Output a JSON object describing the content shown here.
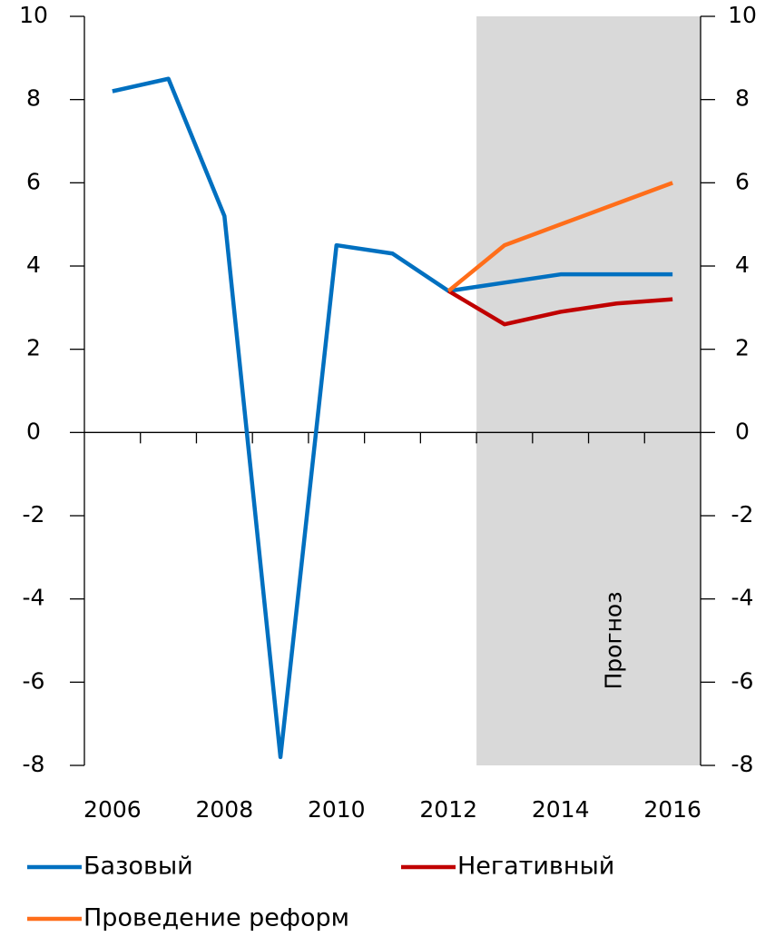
{
  "chart_data": {
    "type": "line",
    "categories": [
      "2006",
      null,
      "2008",
      null,
      "2010",
      null,
      "2012",
      null,
      "2014",
      null,
      "2016"
    ],
    "series": [
      {
        "name": "Базовый",
        "color": "#0070c0",
        "values": [
          8.2,
          8.5,
          5.2,
          -7.8,
          4.5,
          4.3,
          3.4,
          3.6,
          3.8,
          3.8,
          3.8
        ]
      },
      {
        "name": "Негативный",
        "color": "#c00000",
        "values": [
          null,
          null,
          null,
          null,
          null,
          null,
          3.4,
          2.6,
          2.9,
          3.1,
          3.2
        ]
      },
      {
        "name": "Проведение реформ",
        "color": "#ff6e1a",
        "values": [
          null,
          null,
          null,
          null,
          null,
          null,
          3.4,
          4.5,
          5.0,
          5.5,
          6.0
        ]
      }
    ],
    "ylim": [
      -8,
      10
    ],
    "yticks": [
      -8,
      -6,
      -4,
      -2,
      0,
      2,
      4,
      6,
      8,
      10
    ],
    "y2lim": [
      -8,
      10
    ],
    "y2ticks": [
      -8,
      -6,
      -4,
      -2,
      0,
      2,
      4,
      6,
      8,
      10
    ],
    "shaded_region": {
      "from_index": 7,
      "label": "Прогноз",
      "color": "#d9d9d9"
    }
  }
}
